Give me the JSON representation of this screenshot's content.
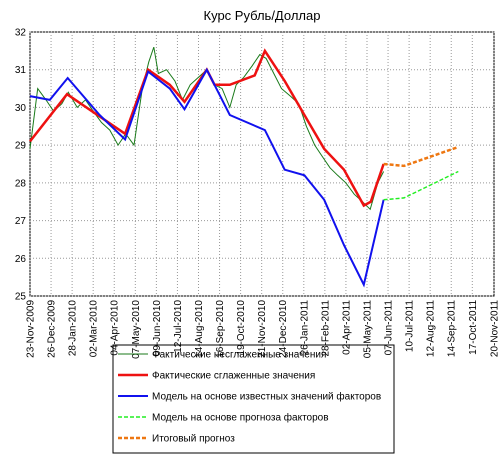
{
  "chart_data": {
    "type": "line",
    "title": "Курс Рубль/Доллар",
    "xlim": [
      "2009-11-23",
      "2011-11-20"
    ],
    "xticks": [
      {
        "value": "2009-11-23",
        "label": "23-Nov-2009"
      },
      {
        "value": "2009-12-26",
        "label": "26-Dec-2009"
      },
      {
        "value": "2010-01-28",
        "label": "28-Jan-2010"
      },
      {
        "value": "2010-03-02",
        "label": "02-Mar-2010"
      },
      {
        "value": "2010-04-04",
        "label": "04-Apr-2010"
      },
      {
        "value": "2010-05-07",
        "label": "07-May-2010"
      },
      {
        "value": "2010-06-09",
        "label": "09-Jun-2010"
      },
      {
        "value": "2010-07-12",
        "label": "12-Jul-2010"
      },
      {
        "value": "2010-08-14",
        "label": "14-Aug-2010"
      },
      {
        "value": "2010-09-16",
        "label": "16-Sep-2010"
      },
      {
        "value": "2010-10-19",
        "label": "19-Oct-2010"
      },
      {
        "value": "2010-11-21",
        "label": "21-Nov-2010"
      },
      {
        "value": "2010-12-24",
        "label": "24-Dec-2010"
      },
      {
        "value": "2011-01-26",
        "label": "26-Jan-2011"
      },
      {
        "value": "2011-02-28",
        "label": "28-Feb-2011"
      },
      {
        "value": "2011-04-02",
        "label": "02-Apr-2011"
      },
      {
        "value": "2011-05-05",
        "label": "05-May-2011"
      },
      {
        "value": "2011-06-07",
        "label": "07-Jun-2011"
      },
      {
        "value": "2011-07-10",
        "label": "10-Jul-2011"
      },
      {
        "value": "2011-08-12",
        "label": "12-Aug-2011"
      },
      {
        "value": "2011-09-14",
        "label": "14-Sep-2011"
      },
      {
        "value": "2011-10-17",
        "label": "17-Oct-2011"
      },
      {
        "value": "2011-11-20",
        "label": "20-Nov-2011"
      }
    ],
    "ylim": [
      25,
      32
    ],
    "yticks": [
      25,
      26,
      27,
      28,
      29,
      30,
      31,
      32
    ],
    "grid": true,
    "series": [
      {
        "name": "Фактические несглаженные значения",
        "color": "#1a7a1a",
        "linestyle": "solid",
        "linewidth": 1,
        "x": [
          "2009-11-23",
          "2009-12-05",
          "2009-12-18",
          "2009-12-30",
          "2010-01-12",
          "2010-01-22",
          "2010-02-05",
          "2010-02-18",
          "2010-03-02",
          "2010-03-15",
          "2010-03-28",
          "2010-04-10",
          "2010-04-22",
          "2010-05-05",
          "2010-05-18",
          "2010-05-28",
          "2010-06-05",
          "2010-06-12",
          "2010-06-25",
          "2010-07-08",
          "2010-07-20",
          "2010-08-01",
          "2010-08-14",
          "2010-08-27",
          "2010-09-08",
          "2010-09-20",
          "2010-10-02",
          "2010-10-12",
          "2010-10-24",
          "2010-11-06",
          "2010-11-18",
          "2010-11-28",
          "2010-12-10",
          "2010-12-22",
          "2011-01-05",
          "2011-01-18",
          "2011-01-30",
          "2011-02-12",
          "2011-02-24",
          "2011-03-08",
          "2011-03-20",
          "2011-04-02",
          "2011-04-15",
          "2011-04-28",
          "2011-05-10",
          "2011-05-22",
          "2011-05-31"
        ],
        "values": [
          28.9,
          30.5,
          30.2,
          29.9,
          30.1,
          30.4,
          30.0,
          30.2,
          29.9,
          29.6,
          29.4,
          29.0,
          29.3,
          29.0,
          30.5,
          31.2,
          31.6,
          30.9,
          31.0,
          30.7,
          30.2,
          30.6,
          30.8,
          31.0,
          30.6,
          30.5,
          30.0,
          30.6,
          30.8,
          31.1,
          31.4,
          31.3,
          30.9,
          30.5,
          30.3,
          30.1,
          29.5,
          29.0,
          28.7,
          28.4,
          28.2,
          28.0,
          27.7,
          27.5,
          27.3,
          28.0,
          28.3
        ]
      },
      {
        "name": "Фактические сглаженные значения",
        "color": "#ee1111",
        "linestyle": "solid",
        "linewidth": 2.5,
        "x": [
          "2009-11-23",
          "2010-01-20",
          "2010-04-21",
          "2010-05-27",
          "2010-06-30",
          "2010-07-23",
          "2010-08-27",
          "2010-09-08",
          "2010-10-02",
          "2010-11-10",
          "2010-11-26",
          "2010-12-27",
          "2011-01-27",
          "2011-02-27",
          "2011-03-30",
          "2011-04-30",
          "2011-05-11",
          "2011-05-31"
        ],
        "values": [
          29.1,
          30.35,
          29.3,
          31.0,
          30.6,
          30.15,
          31.0,
          30.6,
          30.6,
          30.85,
          31.5,
          30.7,
          29.8,
          28.9,
          28.35,
          27.4,
          27.5,
          28.5
        ]
      },
      {
        "name": "Модель на основе известных значений факторов",
        "color": "#1111ee",
        "linestyle": "solid",
        "linewidth": 2,
        "x": [
          "2009-11-23",
          "2009-12-24",
          "2010-01-21",
          "2010-03-12",
          "2010-04-21",
          "2010-05-27",
          "2010-06-30",
          "2010-07-23",
          "2010-08-27",
          "2010-10-02",
          "2010-11-26",
          "2010-12-27",
          "2011-01-27",
          "2011-02-27",
          "2011-03-30",
          "2011-04-30",
          "2011-05-31"
        ],
        "values": [
          30.3,
          30.2,
          30.78,
          29.8,
          29.15,
          30.95,
          30.5,
          29.95,
          31.0,
          29.8,
          29.4,
          28.35,
          28.2,
          27.55,
          26.35,
          25.3,
          27.55
        ]
      },
      {
        "name": "Модель на основе прогноза факторов",
        "color": "#22ee22",
        "linestyle": "dashed",
        "linewidth": 1.5,
        "x": [
          "2011-05-31",
          "2011-07-02",
          "2011-09-25"
        ],
        "values": [
          27.55,
          27.6,
          28.3
        ]
      },
      {
        "name": "Итоговый прогноз",
        "color": "#ee7711",
        "linestyle": "dashed",
        "linewidth": 2.5,
        "x": [
          "2011-05-31",
          "2011-07-02",
          "2011-09-25"
        ],
        "values": [
          28.5,
          28.45,
          28.95
        ]
      }
    ]
  }
}
